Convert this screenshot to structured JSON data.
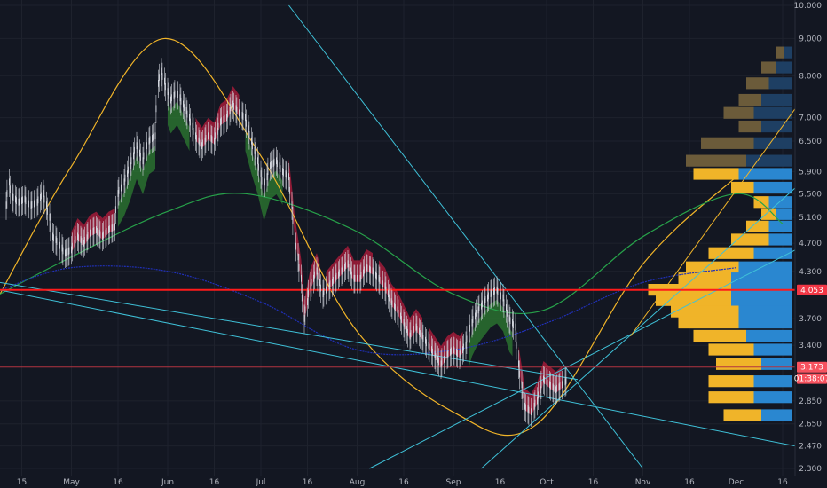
{
  "chart_data": {
    "type": "candlestick",
    "price_scale": "log",
    "ylim": [
      2.3,
      10.0
    ],
    "y_ticks": [
      10.0,
      9.0,
      8.0,
      7.0,
      6.5,
      5.9,
      5.5,
      5.1,
      4.7,
      4.3,
      3.7,
      3.4,
      2.85,
      2.65,
      2.47,
      2.3
    ],
    "y_tick_labels": [
      "10.000",
      "9.000",
      "8.000",
      "7.000",
      "6.500",
      "5.900",
      "5.500",
      "5.100",
      "4.700",
      "4.300",
      "3.700",
      "3.400",
      "2.850",
      "2.650",
      "2.470",
      "2.300"
    ],
    "x_range": [
      "2019-04-08",
      "2019-12-20"
    ],
    "x_ticks": [
      {
        "label": "15",
        "date": "2019-04-15"
      },
      {
        "label": "May",
        "date": "2019-05-01"
      },
      {
        "label": "16",
        "date": "2019-05-16"
      },
      {
        "label": "Jun",
        "date": "2019-06-01"
      },
      {
        "label": "16",
        "date": "2019-06-16"
      },
      {
        "label": "Jul",
        "date": "2019-07-01"
      },
      {
        "label": "16",
        "date": "2019-07-16"
      },
      {
        "label": "Aug",
        "date": "2019-08-01"
      },
      {
        "label": "16",
        "date": "2019-08-16"
      },
      {
        "label": "Sep",
        "date": "2019-09-01"
      },
      {
        "label": "16",
        "date": "2019-09-16"
      },
      {
        "label": "Oct",
        "date": "2019-10-01"
      },
      {
        "label": "16",
        "date": "2019-10-16"
      },
      {
        "label": "Nov",
        "date": "2019-11-01"
      },
      {
        "label": "16",
        "date": "2019-11-16"
      },
      {
        "label": "Dec",
        "date": "2019-12-01"
      },
      {
        "label": "16",
        "date": "2019-12-16"
      }
    ],
    "price_tags": [
      {
        "label": "4.053",
        "value": 4.053,
        "color": "#f23645"
      },
      {
        "label": "3.173",
        "value": 3.173,
        "color": "#f7525f"
      },
      {
        "label": "01:38:07",
        "value": 3.06,
        "color": "#f7525f"
      }
    ],
    "horizontal_lines": [
      {
        "value": 4.053,
        "color": "#ff1a1a"
      },
      {
        "value": 3.173,
        "color": "#b23440"
      }
    ],
    "series": [
      {
        "type": "candles",
        "colors": {
          "up": "#d1d4dc",
          "down": "#d1d4dc"
        },
        "points": [
          [
            "2019-04-10",
            5.3
          ],
          [
            "2019-04-11",
            5.7
          ],
          [
            "2019-04-12",
            5.45
          ],
          [
            "2019-04-14",
            5.35
          ],
          [
            "2019-04-16",
            5.4
          ],
          [
            "2019-04-18",
            5.3
          ],
          [
            "2019-04-20",
            5.35
          ],
          [
            "2019-04-22",
            5.5
          ],
          [
            "2019-04-24",
            5.1
          ],
          [
            "2019-04-25",
            4.8
          ],
          [
            "2019-04-27",
            4.7
          ],
          [
            "2019-04-29",
            4.55
          ],
          [
            "2019-05-01",
            4.6
          ],
          [
            "2019-05-03",
            4.8
          ],
          [
            "2019-05-05",
            4.7
          ],
          [
            "2019-05-07",
            4.85
          ],
          [
            "2019-05-09",
            4.9
          ],
          [
            "2019-05-11",
            4.8
          ],
          [
            "2019-05-13",
            4.9
          ],
          [
            "2019-05-15",
            4.95
          ],
          [
            "2019-05-16",
            5.5
          ],
          [
            "2019-05-18",
            5.7
          ],
          [
            "2019-05-20",
            6.0
          ],
          [
            "2019-05-22",
            6.4
          ],
          [
            "2019-05-24",
            6.1
          ],
          [
            "2019-05-26",
            6.5
          ],
          [
            "2019-05-28",
            6.6
          ],
          [
            "2019-05-29",
            7.8
          ],
          [
            "2019-05-30",
            8.1
          ],
          [
            "2019-06-01",
            7.6
          ],
          [
            "2019-06-02",
            7.4
          ],
          [
            "2019-06-04",
            7.6
          ],
          [
            "2019-06-06",
            7.3
          ],
          [
            "2019-06-08",
            7.0
          ],
          [
            "2019-06-10",
            6.6
          ],
          [
            "2019-06-12",
            6.4
          ],
          [
            "2019-06-14",
            6.6
          ],
          [
            "2019-06-16",
            6.5
          ],
          [
            "2019-06-18",
            6.9
          ],
          [
            "2019-06-20",
            7.0
          ],
          [
            "2019-06-22",
            7.3
          ],
          [
            "2019-06-24",
            7.1
          ],
          [
            "2019-06-26",
            7.0
          ],
          [
            "2019-06-28",
            6.5
          ],
          [
            "2019-06-30",
            6.1
          ],
          [
            "2019-07-02",
            5.6
          ],
          [
            "2019-07-04",
            6.0
          ],
          [
            "2019-07-06",
            6.1
          ],
          [
            "2019-07-08",
            5.9
          ],
          [
            "2019-07-10",
            5.8
          ],
          [
            "2019-07-12",
            4.8
          ],
          [
            "2019-07-14",
            4.2
          ],
          [
            "2019-07-15",
            3.7
          ],
          [
            "2019-07-17",
            4.1
          ],
          [
            "2019-07-19",
            4.3
          ],
          [
            "2019-07-21",
            4.0
          ],
          [
            "2019-07-23",
            4.1
          ],
          [
            "2019-07-25",
            4.2
          ],
          [
            "2019-07-27",
            4.3
          ],
          [
            "2019-07-29",
            4.4
          ],
          [
            "2019-07-31",
            4.2
          ],
          [
            "2019-08-02",
            4.2
          ],
          [
            "2019-08-04",
            4.35
          ],
          [
            "2019-08-06",
            4.3
          ],
          [
            "2019-08-08",
            4.2
          ],
          [
            "2019-08-10",
            4.1
          ],
          [
            "2019-08-12",
            3.9
          ],
          [
            "2019-08-14",
            3.8
          ],
          [
            "2019-08-16",
            3.65
          ],
          [
            "2019-08-18",
            3.5
          ],
          [
            "2019-08-20",
            3.6
          ],
          [
            "2019-08-22",
            3.5
          ],
          [
            "2019-08-24",
            3.4
          ],
          [
            "2019-08-26",
            3.3
          ],
          [
            "2019-08-28",
            3.2
          ],
          [
            "2019-08-30",
            3.3
          ],
          [
            "2019-09-01",
            3.35
          ],
          [
            "2019-09-03",
            3.3
          ],
          [
            "2019-09-05",
            3.4
          ],
          [
            "2019-09-07",
            3.65
          ],
          [
            "2019-09-09",
            3.8
          ],
          [
            "2019-09-11",
            3.9
          ],
          [
            "2019-09-13",
            4.0
          ],
          [
            "2019-09-15",
            4.05
          ],
          [
            "2019-09-17",
            3.95
          ],
          [
            "2019-09-19",
            3.7
          ],
          [
            "2019-09-21",
            3.6
          ],
          [
            "2019-09-22",
            3.2
          ],
          [
            "2019-09-24",
            2.8
          ],
          [
            "2019-09-26",
            2.75
          ],
          [
            "2019-09-28",
            2.85
          ],
          [
            "2019-09-30",
            3.05
          ],
          [
            "2019-10-02",
            3.0
          ],
          [
            "2019-10-04",
            2.95
          ],
          [
            "2019-10-06",
            3.0
          ],
          [
            "2019-10-08",
            3.05
          ]
        ]
      },
      {
        "type": "cloud",
        "colors": {
          "bull": "#2e7d32",
          "bear": "#b71c3c"
        },
        "segments": [
          [
            "2019-05-01",
            "2019-05-15",
            "bear"
          ],
          [
            "2019-05-16",
            "2019-05-28",
            "bull"
          ],
          [
            "2019-06-01",
            "2019-06-08",
            "bull"
          ],
          [
            "2019-06-10",
            "2019-06-24",
            "bear"
          ],
          [
            "2019-06-26",
            "2019-07-08",
            "bull"
          ],
          [
            "2019-07-10",
            "2019-07-20",
            "bear"
          ],
          [
            "2019-07-22",
            "2019-08-06",
            "bear"
          ],
          [
            "2019-08-08",
            "2019-08-22",
            "bear"
          ],
          [
            "2019-08-24",
            "2019-09-04",
            "bear"
          ],
          [
            "2019-09-06",
            "2019-09-20",
            "bull"
          ],
          [
            "2019-09-22",
            "2019-10-06",
            "bear"
          ]
        ]
      },
      {
        "type": "curve",
        "color": "#f0b429",
        "points": [
          [
            "2019-04-08",
            4.0
          ],
          [
            "2019-05-01",
            6.0
          ],
          [
            "2019-05-31",
            9.0
          ],
          [
            "2019-07-01",
            6.2
          ],
          [
            "2019-07-31",
            3.6
          ],
          [
            "2019-09-01",
            2.75
          ],
          [
            "2019-09-28",
            2.65
          ],
          [
            "2019-11-01",
            4.4
          ],
          [
            "2019-12-01",
            5.8
          ]
        ]
      },
      {
        "type": "curve",
        "color": "#27a24a",
        "points": [
          [
            "2019-04-08",
            4.0
          ],
          [
            "2019-05-01",
            4.5
          ],
          [
            "2019-06-01",
            5.2
          ],
          [
            "2019-06-26",
            5.5
          ],
          [
            "2019-07-31",
            4.9
          ],
          [
            "2019-09-01",
            4.0
          ],
          [
            "2019-09-30",
            3.8
          ],
          [
            "2019-11-01",
            4.8
          ],
          [
            "2019-12-01",
            5.5
          ],
          [
            "2019-12-16",
            5.0
          ]
        ]
      },
      {
        "type": "curve",
        "color": "#2030b8",
        "points": [
          [
            "2019-04-08",
            4.05
          ],
          [
            "2019-05-01",
            4.35
          ],
          [
            "2019-06-01",
            4.3
          ],
          [
            "2019-07-01",
            3.9
          ],
          [
            "2019-08-01",
            3.35
          ],
          [
            "2019-09-01",
            3.35
          ],
          [
            "2019-10-01",
            3.65
          ],
          [
            "2019-11-01",
            4.15
          ],
          [
            "2019-12-01",
            4.35
          ]
        ]
      }
    ],
    "trendlines": [
      {
        "color": "#3fc1d8",
        "from": [
          "2019-04-08",
          4.05
        ],
        "to": [
          "2019-12-20",
          2.47
        ]
      },
      {
        "color": "#3fc1d8",
        "from": [
          "2019-04-08",
          4.15
        ],
        "to": [
          "2019-10-11",
          3.05
        ]
      },
      {
        "color": "#3fc1d8",
        "from": [
          "2019-07-10",
          10.0
        ],
        "to": [
          "2019-11-01",
          2.3
        ]
      },
      {
        "color": "#3fc1d8",
        "from": [
          "2019-08-05",
          2.3
        ],
        "to": [
          "2019-12-20",
          4.6
        ]
      },
      {
        "color": "#3fc1d8",
        "from": [
          "2019-09-10",
          2.3
        ],
        "to": [
          "2019-12-20",
          5.6
        ]
      },
      {
        "color": "#f0b429",
        "from": [
          "2019-10-28",
          3.5
        ],
        "to": [
          "2019-12-20",
          7.2
        ]
      }
    ],
    "volume_profile": {
      "colors": {
        "buy": "#f0b429",
        "sell": "#2a87d0",
        "buy_faded": "#6b5b3a",
        "sell_faded": "#1e3f63"
      },
      "rows": [
        {
          "price": 8.6,
          "buy": 1,
          "sell": 1,
          "faded": true
        },
        {
          "price": 8.2,
          "buy": 2,
          "sell": 2,
          "faded": true
        },
        {
          "price": 7.8,
          "buy": 3,
          "sell": 3,
          "faded": true
        },
        {
          "price": 7.4,
          "buy": 3,
          "sell": 4,
          "faded": true
        },
        {
          "price": 7.1,
          "buy": 4,
          "sell": 5,
          "faded": true
        },
        {
          "price": 6.8,
          "buy": 3,
          "sell": 4,
          "faded": true
        },
        {
          "price": 6.45,
          "buy": 7,
          "sell": 5,
          "faded": true
        },
        {
          "price": 6.1,
          "buy": 8,
          "sell": 6,
          "faded": true
        },
        {
          "price": 5.85,
          "buy": 6,
          "sell": 7,
          "faded": false
        },
        {
          "price": 5.6,
          "buy": 3,
          "sell": 5,
          "faded": false
        },
        {
          "price": 5.35,
          "buy": 2,
          "sell": 3,
          "faded": false
        },
        {
          "price": 5.15,
          "buy": 2,
          "sell": 2,
          "faded": false
        },
        {
          "price": 4.95,
          "buy": 3,
          "sell": 3,
          "faded": false
        },
        {
          "price": 4.75,
          "buy": 5,
          "sell": 3,
          "faded": false
        },
        {
          "price": 4.55,
          "buy": 6,
          "sell": 5,
          "faded": false
        },
        {
          "price": 4.35,
          "buy": 7,
          "sell": 7,
          "faded": false
        },
        {
          "price": 4.2,
          "buy": 7,
          "sell": 8,
          "faded": false
        },
        {
          "price": 4.05,
          "buy": 11,
          "sell": 8,
          "faded": false
        },
        {
          "price": 3.92,
          "buy": 10,
          "sell": 8,
          "faded": false
        },
        {
          "price": 3.78,
          "buy": 9,
          "sell": 7,
          "faded": false
        },
        {
          "price": 3.65,
          "buy": 8,
          "sell": 7,
          "faded": false
        },
        {
          "price": 3.5,
          "buy": 7,
          "sell": 6,
          "faded": false
        },
        {
          "price": 3.35,
          "buy": 6,
          "sell": 5,
          "faded": false
        },
        {
          "price": 3.2,
          "buy": 6,
          "sell": 4,
          "faded": false
        },
        {
          "price": 3.03,
          "buy": 6,
          "sell": 5,
          "faded": false
        },
        {
          "price": 2.88,
          "buy": 6,
          "sell": 5,
          "faded": false
        },
        {
          "price": 2.72,
          "buy": 5,
          "sell": 4,
          "faded": false
        }
      ]
    }
  }
}
